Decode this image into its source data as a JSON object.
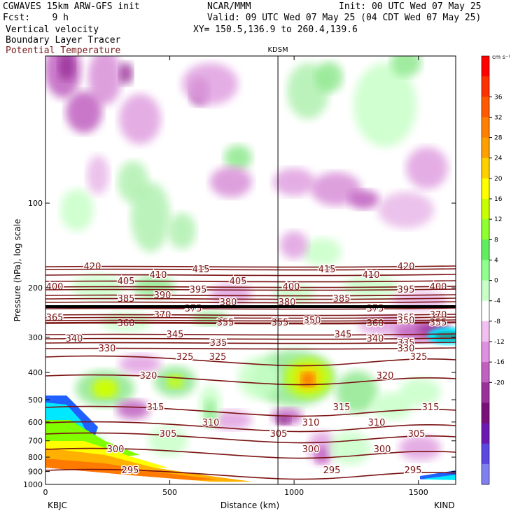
{
  "header": {
    "model": "CGWAVES 15km ARW-GFS init",
    "fcst": "Fcst:    9 h",
    "field1": "Vertical velocity",
    "field2": "Boundary Layer Tracer",
    "field3": "Potential Temperature",
    "org": "NCAR/MMM",
    "init": "Init: 00 UTC Wed 07 May 25",
    "valid": "Valid: 09 UTC Wed 07 May 25 (04 CDT Wed 07 May 25)",
    "xy": "XY= 150.5,136.9 to 260.4,139.6"
  },
  "colors": {
    "theta": "#7b1212",
    "tracer_shades": [
      "#ffb000",
      "#ff7a00",
      "#ff4000",
      "#00e8ff",
      "#7fff00",
      "#2060ff"
    ]
  },
  "chart_data": {
    "type": "heatmap",
    "title": "",
    "marker_label": "KDSM",
    "xlabel": "Distance (km)",
    "ylabel": "Pressure (hPa), log scale",
    "x_range": [
      0,
      1650
    ],
    "x_ticks": [
      "0",
      "500",
      "1000",
      "1500"
    ],
    "x_end_labels": [
      "KBJC",
      "KIND"
    ],
    "y_scale": "log",
    "y_range": [
      1000,
      30
    ],
    "y_ticks": [
      "100",
      "200",
      "300",
      "400",
      "500",
      "600",
      "700",
      "800",
      "900",
      "1000"
    ],
    "kdsm_distance_km": 935,
    "colorbar": {
      "units": "cm s⁻¹",
      "labels": [
        "36",
        "32",
        "28",
        "24",
        "20",
        "16",
        "12",
        "8",
        "4",
        "0",
        "-4",
        "-8",
        "-12",
        "-16",
        "-20"
      ],
      "colors": [
        "#ff0000",
        "#ff3000",
        "#ff5a00",
        "#ff8000",
        "#ffa000",
        "#ffd000",
        "#ffff00",
        "#c8ff00",
        "#90ff30",
        "#60ee60",
        "#90ff90",
        "#c8ffc8",
        "#ffffff",
        "#f0c0f0",
        "#e090e0",
        "#c060c0",
        "#9a309a",
        "#7a107a",
        "#6a1ab0",
        "#5a48e0",
        "#7f7ff0"
      ]
    },
    "theta_contours": [
      {
        "label": "420",
        "y": 381,
        "labels_at": [
          [
            132,
            "420"
          ],
          [
            580,
            "420"
          ]
        ]
      },
      {
        "label": "415",
        "y": 385,
        "labels_at": [
          [
            287,
            "415"
          ],
          [
            467,
            "415"
          ]
        ]
      },
      {
        "label": "410",
        "y": 393,
        "labels_at": [
          [
            226,
            "410"
          ],
          [
            530,
            "410"
          ]
        ]
      },
      {
        "label": "405",
        "y": 402,
        "labels_at": [
          [
            180,
            "405"
          ],
          [
            340,
            "405"
          ]
        ]
      },
      {
        "label": "400",
        "y": 410,
        "labels_at": [
          [
            78,
            "400"
          ],
          [
            416,
            "400"
          ],
          [
            626,
            "400"
          ]
        ]
      },
      {
        "label": "395",
        "y": 414,
        "labels_at": [
          [
            283,
            "395"
          ],
          [
            580,
            "395"
          ]
        ]
      },
      {
        "label": "390",
        "y": 422,
        "labels_at": [
          [
            232,
            "390"
          ]
        ]
      },
      {
        "label": "385",
        "y": 427,
        "labels_at": [
          [
            180,
            "385"
          ],
          [
            488,
            "385"
          ]
        ]
      },
      {
        "label": "380",
        "y": 432,
        "labels_at": [
          [
            326,
            "380"
          ],
          [
            410,
            "380"
          ]
        ]
      },
      {
        "label": "375",
        "y": 441,
        "labels_at": [
          [
            276,
            "375"
          ],
          [
            536,
            "375"
          ]
        ]
      },
      {
        "label": "370",
        "y": 450,
        "labels_at": [
          [
            232,
            "370"
          ],
          [
            626,
            "370"
          ]
        ]
      },
      {
        "label": "365",
        "y": 454,
        "labels_at": [
          [
            78,
            "365"
          ],
          [
            580,
            "365"
          ]
        ]
      },
      {
        "label": "360",
        "y": 462,
        "labels_at": [
          [
            180,
            "360"
          ],
          [
            536,
            "360"
          ]
        ]
      },
      {
        "label": "355",
        "y": 461,
        "labels_at": [
          [
            322,
            "355"
          ],
          [
            400,
            "355"
          ],
          [
            626,
            "355"
          ]
        ]
      },
      {
        "label": "350",
        "y": 458,
        "labels_at": [
          [
            446,
            "350"
          ],
          [
            580,
            "350"
          ]
        ]
      },
      {
        "label": "345",
        "y": 478,
        "labels_at": [
          [
            250,
            "345"
          ],
          [
            490,
            "345"
          ]
        ]
      },
      {
        "label": "340",
        "y": 484,
        "labels_at": [
          [
            106,
            "340"
          ],
          [
            536,
            "340"
          ]
        ]
      },
      {
        "label": "335",
        "y": 490,
        "labels_at": [
          [
            312,
            "335"
          ],
          [
            580,
            "335"
          ]
        ]
      },
      {
        "label": "330",
        "y": 498,
        "labels_at": [
          [
            153,
            "330"
          ],
          [
            580,
            "330"
          ]
        ]
      },
      {
        "label": "325",
        "y": 510,
        "labels_at": [
          [
            264,
            "325"
          ],
          [
            311,
            "325"
          ],
          [
            598,
            "325"
          ]
        ]
      },
      {
        "label": "320",
        "y": 537,
        "labels_at": [
          [
            212,
            "320"
          ],
          [
            550,
            "320"
          ]
        ]
      },
      {
        "label": "315",
        "y": 582,
        "labels_at": [
          [
            222,
            "315"
          ],
          [
            488,
            "315"
          ],
          [
            615,
            "315"
          ]
        ]
      },
      {
        "label": "310",
        "y": 604,
        "labels_at": [
          [
            301,
            "310"
          ],
          [
            444,
            "310"
          ],
          [
            538,
            "310"
          ]
        ]
      },
      {
        "label": "305",
        "y": 620,
        "labels_at": [
          [
            240,
            "305"
          ],
          [
            398,
            "305"
          ],
          [
            595,
            "305"
          ]
        ]
      },
      {
        "label": "300",
        "y": 642,
        "labels_at": [
          [
            165,
            "300"
          ],
          [
            444,
            "300"
          ],
          [
            546,
            "300"
          ]
        ]
      },
      {
        "label": "295",
        "y": 672,
        "labels_at": [
          [
            186,
            "295"
          ],
          [
            474,
            "295"
          ],
          [
            590,
            "295"
          ]
        ]
      }
    ]
  }
}
